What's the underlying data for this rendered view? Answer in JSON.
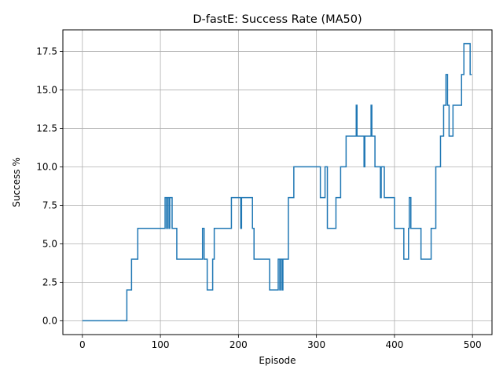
{
  "chart_data": {
    "type": "line",
    "title": "D-fastE: Success Rate (MA50)",
    "xlabel": "Episode",
    "ylabel": "Success %",
    "xlim": [
      -25,
      525
    ],
    "ylim": [
      -0.9,
      18.9
    ],
    "xticks": [
      0,
      100,
      200,
      300,
      400,
      500
    ],
    "xtick_labels": [
      "0",
      "100",
      "200",
      "300",
      "400",
      "500"
    ],
    "yticks": [
      0.0,
      2.5,
      5.0,
      7.5,
      10.0,
      12.5,
      15.0,
      17.5
    ],
    "ytick_labels": [
      "0.0",
      "2.5",
      "5.0",
      "7.5",
      "10.0",
      "12.5",
      "15.0",
      "17.5"
    ],
    "grid": true,
    "series": [
      {
        "name": "",
        "color": "#1f77b4",
        "steps": [
          [
            0,
            0
          ],
          [
            57,
            2
          ],
          [
            63,
            4
          ],
          [
            71,
            6
          ],
          [
            106,
            8
          ],
          [
            108,
            6
          ],
          [
            109,
            8
          ],
          [
            111,
            6
          ],
          [
            112,
            8
          ],
          [
            115,
            6
          ],
          [
            121,
            4
          ],
          [
            154,
            6
          ],
          [
            156,
            4
          ],
          [
            160,
            2
          ],
          [
            167,
            4
          ],
          [
            169,
            6
          ],
          [
            191,
            8
          ],
          [
            203,
            6
          ],
          [
            204,
            8
          ],
          [
            218,
            6
          ],
          [
            220,
            4
          ],
          [
            240,
            2
          ],
          [
            251,
            4
          ],
          [
            253,
            2
          ],
          [
            254,
            4
          ],
          [
            256,
            2
          ],
          [
            257,
            4
          ],
          [
            264,
            8
          ],
          [
            271,
            10
          ],
          [
            305,
            8
          ],
          [
            311,
            10
          ],
          [
            314,
            6
          ],
          [
            325,
            8
          ],
          [
            331,
            10
          ],
          [
            338,
            12
          ],
          [
            351,
            14
          ],
          [
            352,
            12
          ],
          [
            361,
            10
          ],
          [
            362,
            12
          ],
          [
            369,
            12
          ],
          [
            370,
            14
          ],
          [
            371,
            12
          ],
          [
            375,
            10
          ],
          [
            382,
            8
          ],
          [
            383,
            10
          ],
          [
            387,
            8
          ],
          [
            400,
            6
          ],
          [
            412,
            4
          ],
          [
            418,
            6
          ],
          [
            419,
            8
          ],
          [
            421,
            6
          ],
          [
            434,
            4
          ],
          [
            447,
            6
          ],
          [
            453,
            10
          ],
          [
            459,
            12
          ],
          [
            463,
            14
          ],
          [
            466,
            16
          ],
          [
            468,
            14
          ],
          [
            470,
            12
          ],
          [
            475,
            14
          ],
          [
            486,
            16
          ],
          [
            489,
            18
          ],
          [
            497,
            16
          ],
          [
            499,
            16
          ]
        ]
      }
    ]
  }
}
